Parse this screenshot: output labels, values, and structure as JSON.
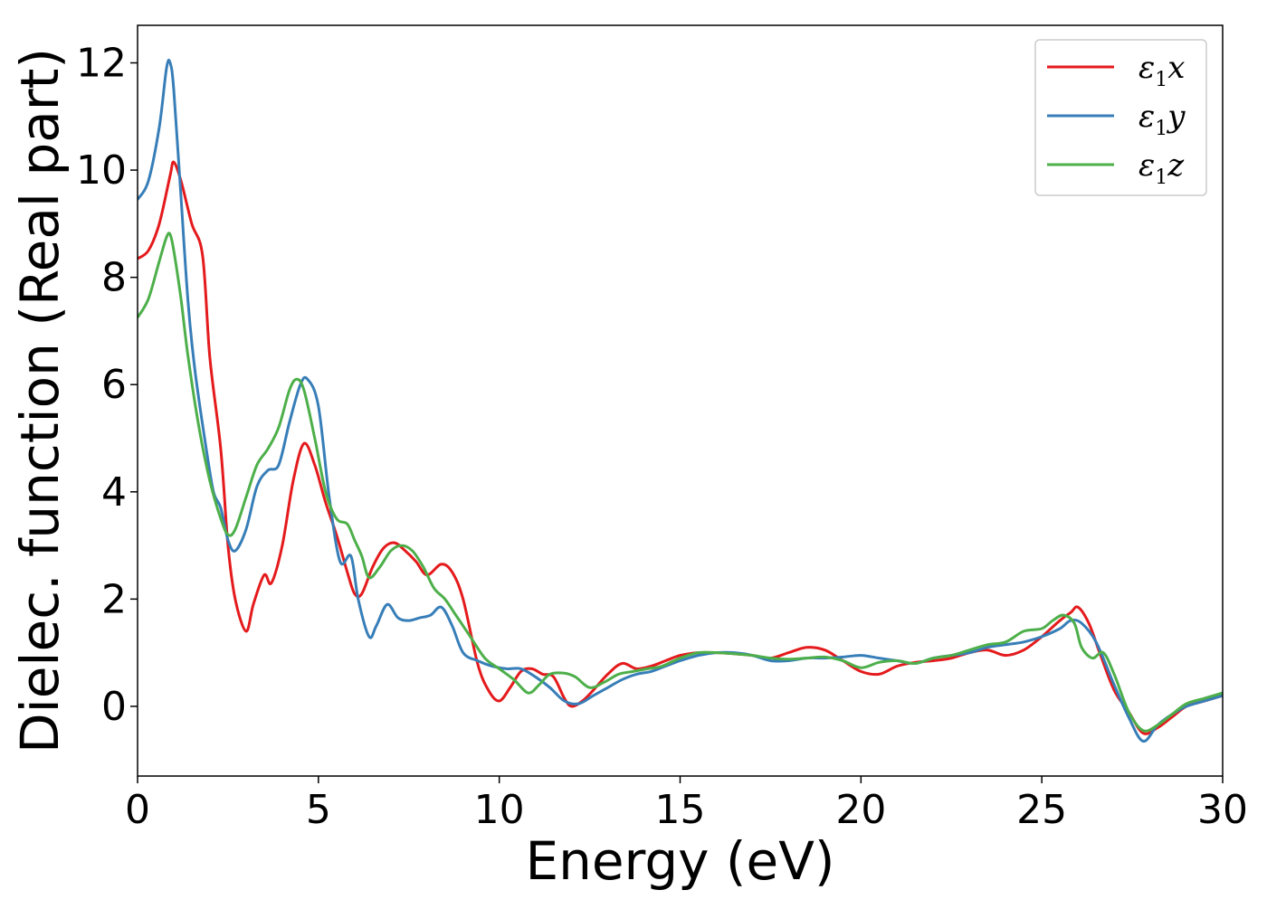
{
  "chart_data": {
    "type": "line",
    "title": "",
    "xlabel": "Energy (eV)",
    "ylabel": "Dielec. function (Real part)",
    "xlim": [
      0,
      30
    ],
    "ylim": [
      -1.3,
      12.7
    ],
    "xticks": [
      0,
      5,
      10,
      15,
      20,
      25,
      30
    ],
    "yticks": [
      0,
      2,
      4,
      6,
      8,
      10,
      12
    ],
    "xtick_labels": [
      "0",
      "5",
      "10",
      "15",
      "20",
      "25",
      "30"
    ],
    "ytick_labels": [
      "0",
      "2",
      "4",
      "6",
      "8",
      "10",
      "12"
    ],
    "grid": false,
    "legend_position": "top-right",
    "series": [
      {
        "name": "ε₁x",
        "legend_main": "ε",
        "legend_sub": "1",
        "legend_var": "x",
        "color": "#e41a1c",
        "x": [
          0,
          0.3,
          0.6,
          0.9,
          1.0,
          1.2,
          1.5,
          1.8,
          2.0,
          2.3,
          2.5,
          2.7,
          3.0,
          3.2,
          3.5,
          3.7,
          4.0,
          4.3,
          4.6,
          4.9,
          5.2,
          5.5,
          5.8,
          6.0,
          6.2,
          6.5,
          6.8,
          7.1,
          7.4,
          7.7,
          8.0,
          8.4,
          8.7,
          9.0,
          9.4,
          9.7,
          10.0,
          10.3,
          10.6,
          10.9,
          11.2,
          11.5,
          11.8,
          12.0,
          12.3,
          12.6,
          13.0,
          13.4,
          13.8,
          14.2,
          14.6,
          15.0,
          15.5,
          16.0,
          16.5,
          17.0,
          17.5,
          18.0,
          18.5,
          19.0,
          19.5,
          20.0,
          20.5,
          21.0,
          21.5,
          22.0,
          22.5,
          23.0,
          23.5,
          24.0,
          24.5,
          25.0,
          25.5,
          25.8,
          26.0,
          26.3,
          26.6,
          27.0,
          27.4,
          27.8,
          28.2,
          28.6,
          29.0,
          29.5,
          30.0
        ],
        "y": [
          8.35,
          8.5,
          9.0,
          9.9,
          10.15,
          9.8,
          9.0,
          8.4,
          6.5,
          4.8,
          3.0,
          2.0,
          1.4,
          1.9,
          2.45,
          2.3,
          3.0,
          4.2,
          4.9,
          4.5,
          3.8,
          3.2,
          2.5,
          2.1,
          2.1,
          2.6,
          2.95,
          3.05,
          2.9,
          2.7,
          2.45,
          2.65,
          2.5,
          2.0,
          0.8,
          0.3,
          0.1,
          0.35,
          0.65,
          0.7,
          0.6,
          0.55,
          0.15,
          0.0,
          0.1,
          0.3,
          0.6,
          0.8,
          0.7,
          0.75,
          0.85,
          0.95,
          1.0,
          1.0,
          0.98,
          0.95,
          0.9,
          1.0,
          1.1,
          1.05,
          0.85,
          0.65,
          0.6,
          0.75,
          0.82,
          0.85,
          0.9,
          1.0,
          1.05,
          0.95,
          1.05,
          1.3,
          1.6,
          1.75,
          1.85,
          1.55,
          1.0,
          0.3,
          -0.1,
          -0.5,
          -0.4,
          -0.2,
          0.0,
          0.1,
          0.2
        ]
      },
      {
        "name": "ε₁y",
        "legend_main": "ε",
        "legend_sub": "1",
        "legend_var": "y",
        "color": "#377eb8",
        "x": [
          0,
          0.3,
          0.6,
          0.8,
          0.9,
          1.0,
          1.2,
          1.4,
          1.6,
          1.9,
          2.1,
          2.3,
          2.5,
          2.7,
          3.0,
          3.3,
          3.6,
          3.9,
          4.2,
          4.5,
          4.7,
          5.0,
          5.3,
          5.6,
          5.9,
          6.1,
          6.4,
          6.6,
          6.9,
          7.2,
          7.5,
          7.8,
          8.1,
          8.4,
          8.7,
          9.0,
          9.4,
          9.8,
          10.2,
          10.6,
          11.0,
          11.4,
          11.8,
          12.2,
          12.6,
          13.0,
          13.4,
          13.8,
          14.2,
          14.6,
          15.0,
          15.5,
          16.0,
          16.5,
          17.0,
          17.5,
          18.0,
          18.5,
          19.0,
          19.5,
          20.0,
          20.5,
          21.0,
          21.5,
          22.0,
          22.5,
          23.0,
          23.5,
          24.0,
          24.5,
          25.0,
          25.5,
          25.8,
          26.1,
          26.5,
          27.0,
          27.4,
          27.8,
          28.2,
          28.6,
          29.0,
          29.5,
          30.0
        ],
        "y": [
          9.45,
          9.8,
          10.8,
          11.9,
          12.0,
          11.5,
          9.5,
          7.5,
          6.2,
          4.8,
          4.0,
          3.7,
          3.1,
          2.9,
          3.3,
          4.1,
          4.4,
          4.5,
          5.3,
          6.0,
          6.1,
          5.6,
          3.9,
          2.7,
          2.8,
          2.0,
          1.3,
          1.5,
          1.9,
          1.65,
          1.6,
          1.65,
          1.7,
          1.85,
          1.5,
          1.0,
          0.85,
          0.75,
          0.7,
          0.7,
          0.55,
          0.35,
          0.1,
          0.05,
          0.2,
          0.35,
          0.5,
          0.6,
          0.65,
          0.75,
          0.85,
          0.95,
          1.0,
          1.0,
          0.95,
          0.85,
          0.85,
          0.9,
          0.9,
          0.92,
          0.95,
          0.9,
          0.85,
          0.8,
          0.9,
          0.95,
          1.0,
          1.1,
          1.15,
          1.2,
          1.3,
          1.45,
          1.6,
          1.55,
          1.2,
          0.4,
          -0.2,
          -0.65,
          -0.35,
          -0.15,
          0.0,
          0.1,
          0.2
        ]
      },
      {
        "name": "ε₁z",
        "legend_main": "ε",
        "legend_sub": "1",
        "legend_var": "z",
        "color": "#4daf4a",
        "x": [
          0,
          0.3,
          0.6,
          0.8,
          0.9,
          1.0,
          1.2,
          1.4,
          1.7,
          2.0,
          2.3,
          2.5,
          2.7,
          3.0,
          3.3,
          3.6,
          3.9,
          4.2,
          4.4,
          4.6,
          4.9,
          5.2,
          5.5,
          5.8,
          6.0,
          6.2,
          6.4,
          6.7,
          7.0,
          7.3,
          7.6,
          7.9,
          8.2,
          8.5,
          8.8,
          9.2,
          9.6,
          10.0,
          10.4,
          10.8,
          11.1,
          11.4,
          11.8,
          12.1,
          12.5,
          12.9,
          13.3,
          13.7,
          14.1,
          14.5,
          15.0,
          15.5,
          16.0,
          16.5,
          17.0,
          17.5,
          18.0,
          18.5,
          19.0,
          19.5,
          20.0,
          20.5,
          21.0,
          21.5,
          22.0,
          22.5,
          23.0,
          23.5,
          24.0,
          24.5,
          25.0,
          25.3,
          25.6,
          25.9,
          26.1,
          26.4,
          26.7,
          27.0,
          27.4,
          27.8,
          28.2,
          28.6,
          29.0,
          29.5,
          30.0
        ],
        "y": [
          7.25,
          7.6,
          8.3,
          8.75,
          8.8,
          8.5,
          7.6,
          6.5,
          5.2,
          4.2,
          3.5,
          3.2,
          3.3,
          3.9,
          4.5,
          4.8,
          5.2,
          5.9,
          6.1,
          5.9,
          5.0,
          4.0,
          3.5,
          3.4,
          3.1,
          2.8,
          2.4,
          2.6,
          2.9,
          3.0,
          2.9,
          2.6,
          2.2,
          2.0,
          1.7,
          1.3,
          0.9,
          0.7,
          0.5,
          0.25,
          0.4,
          0.6,
          0.62,
          0.55,
          0.35,
          0.45,
          0.6,
          0.65,
          0.7,
          0.75,
          0.9,
          1.0,
          1.0,
          0.98,
          0.95,
          0.9,
          0.88,
          0.9,
          0.92,
          0.85,
          0.72,
          0.82,
          0.85,
          0.8,
          0.9,
          0.95,
          1.05,
          1.15,
          1.2,
          1.4,
          1.45,
          1.6,
          1.7,
          1.55,
          1.1,
          0.9,
          1.0,
          0.6,
          -0.1,
          -0.45,
          -0.35,
          -0.15,
          0.05,
          0.15,
          0.25
        ]
      }
    ]
  }
}
